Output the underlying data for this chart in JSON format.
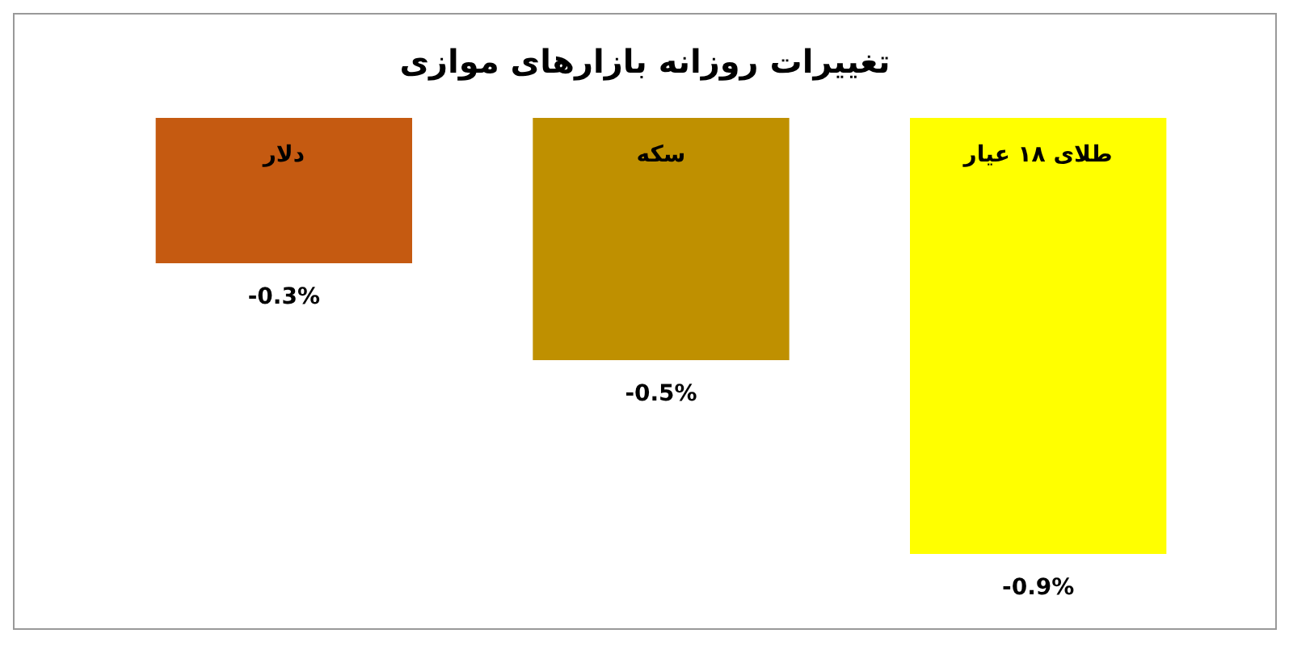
{
  "chart_data": {
    "type": "bar",
    "title": "تغییرات روزانه بازارهای موازی",
    "categories": [
      "دلار",
      "سکه",
      "طلای ۱۸ عیار"
    ],
    "values": [
      -0.3,
      -0.5,
      -0.9
    ],
    "colors": [
      "#c55a11",
      "#bf9000",
      "#ffff00"
    ],
    "value_labels": [
      "-0.3%",
      "-0.5%",
      "-0.9%"
    ],
    "grid": false
  }
}
